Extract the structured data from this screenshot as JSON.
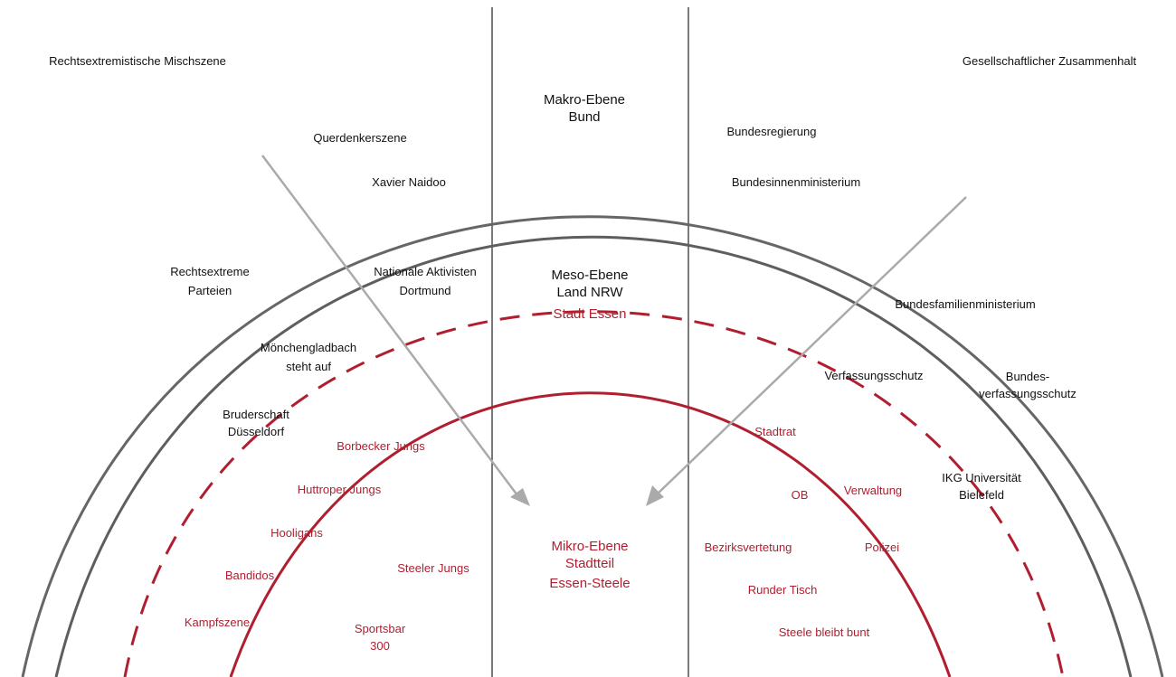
{
  "headers": {
    "left": "Rechtsextremistische Mischszene",
    "right": "Gesellschaftlicher Zusammenhalt"
  },
  "levels": {
    "makro": [
      "Makro-Ebene",
      "Bund"
    ],
    "meso": [
      "Meso-Ebene",
      "Land NRW",
      "Stadt Essen"
    ],
    "mikro": [
      "Mikro-Ebene",
      "Stadtteil",
      "Essen-Steele"
    ]
  },
  "left_actors": {
    "querdenker": "Querdenkerszene",
    "naidoo": "Xavier Naidoo",
    "parteien": [
      "Rechtsextreme",
      "Parteien"
    ],
    "aktivisten": [
      "Nationale Aktivisten",
      "Dortmund"
    ],
    "mg": [
      "Mönchengladbach",
      "steht auf"
    ],
    "bruderschaft": [
      "Bruderschaft",
      "Düsseldorf"
    ],
    "borbecker": "Borbecker Jungs",
    "huttroper": "Huttroper Jungs",
    "hooligans": "Hooligans",
    "bandidos": "Bandidos",
    "kampfszene": "Kampfszene",
    "steeler": "Steeler Jungs",
    "sportsbar": [
      "Sportsbar",
      "300"
    ]
  },
  "right_actors": {
    "bundesregierung": "Bundesregierung",
    "bmi": "Bundesinnenministerium",
    "bmfsfj": "Bundesfamilienministerium",
    "vs": "Verfassungsschutz",
    "bfv": [
      "Bundes-",
      "verfassungsschutz"
    ],
    "stadtrat": "Stadtrat",
    "ob": "OB",
    "verwaltung": "Verwaltung",
    "ikg": [
      "IKG Universität",
      "Bielefeld"
    ],
    "bezirk": "Bezirksvertetung",
    "polizei": "Polizei",
    "runder": "Runder Tisch",
    "steele_bunt": "Steele bleibt bunt"
  },
  "colors": {
    "accent_red": "#b01e2f",
    "arc_grey": "#666666",
    "arrow_grey": "#aaaaaa",
    "text": "#111111"
  }
}
